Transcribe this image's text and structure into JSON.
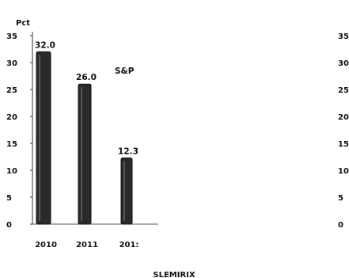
{
  "chart_data": {
    "type": "bar",
    "ylabel": "Pct",
    "categories": [
      "2010",
      "2011",
      "201:"
    ],
    "values": [
      32.0,
      26.0,
      12.3
    ],
    "value_labels": [
      "32.0",
      "26.0",
      "12.3"
    ],
    "annotation": "S&P",
    "footer_label": "SLEMIRIX",
    "ylim": [
      0,
      35
    ],
    "yticks": [
      "0",
      "5",
      "10",
      "15",
      "20",
      "25",
      "30",
      "35"
    ],
    "right_axis_ticks": [
      "0",
      "5",
      "10",
      "15",
      "20",
      "25",
      "30",
      "35"
    ],
    "grid": false,
    "colors": {
      "bar": "#2a2a2a",
      "bar_highlight": "#6a6a6a",
      "text": "#111111"
    }
  }
}
